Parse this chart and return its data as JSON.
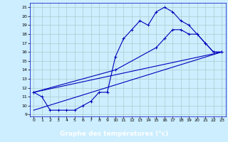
{
  "xlabel": "Graphe des températures (°c)",
  "xlim": [
    -0.5,
    23.5
  ],
  "ylim": [
    8.8,
    21.5
  ],
  "yticks": [
    9,
    10,
    11,
    12,
    13,
    14,
    15,
    16,
    17,
    18,
    19,
    20,
    21
  ],
  "xticks": [
    0,
    1,
    2,
    3,
    4,
    5,
    6,
    7,
    8,
    9,
    10,
    11,
    12,
    13,
    14,
    15,
    16,
    17,
    18,
    19,
    20,
    21,
    22,
    23
  ],
  "background_color": "#cceeff",
  "grid_color": "#aacccc",
  "line_color": "#0000bb",
  "xlabel_bg": "#00007f",
  "xlabel_fg": "#ffffff",
  "line1_x": [
    0,
    1,
    2,
    3,
    4,
    5,
    6,
    7,
    8,
    9,
    10,
    11,
    12,
    13,
    14,
    15,
    16,
    17,
    18,
    19,
    20,
    21,
    22,
    23
  ],
  "line1_y": [
    11.5,
    11.0,
    9.5,
    9.5,
    9.5,
    9.5,
    10.0,
    10.5,
    11.5,
    11.5,
    15.5,
    17.5,
    18.5,
    19.5,
    19.0,
    20.5,
    21.0,
    20.5,
    19.5,
    19.0,
    18.0,
    17.0,
    16.0,
    16.0
  ],
  "line2_x": [
    0,
    10,
    15,
    16,
    17,
    18,
    19,
    20,
    21,
    22,
    23
  ],
  "line2_y": [
    11.5,
    14.0,
    16.5,
    17.5,
    18.5,
    18.5,
    18.0,
    18.0,
    17.0,
    16.0,
    16.0
  ],
  "line3_x": [
    0,
    23
  ],
  "line3_y": [
    9.5,
    16.0
  ],
  "line4_x": [
    0,
    23
  ],
  "line4_y": [
    11.5,
    16.0
  ]
}
